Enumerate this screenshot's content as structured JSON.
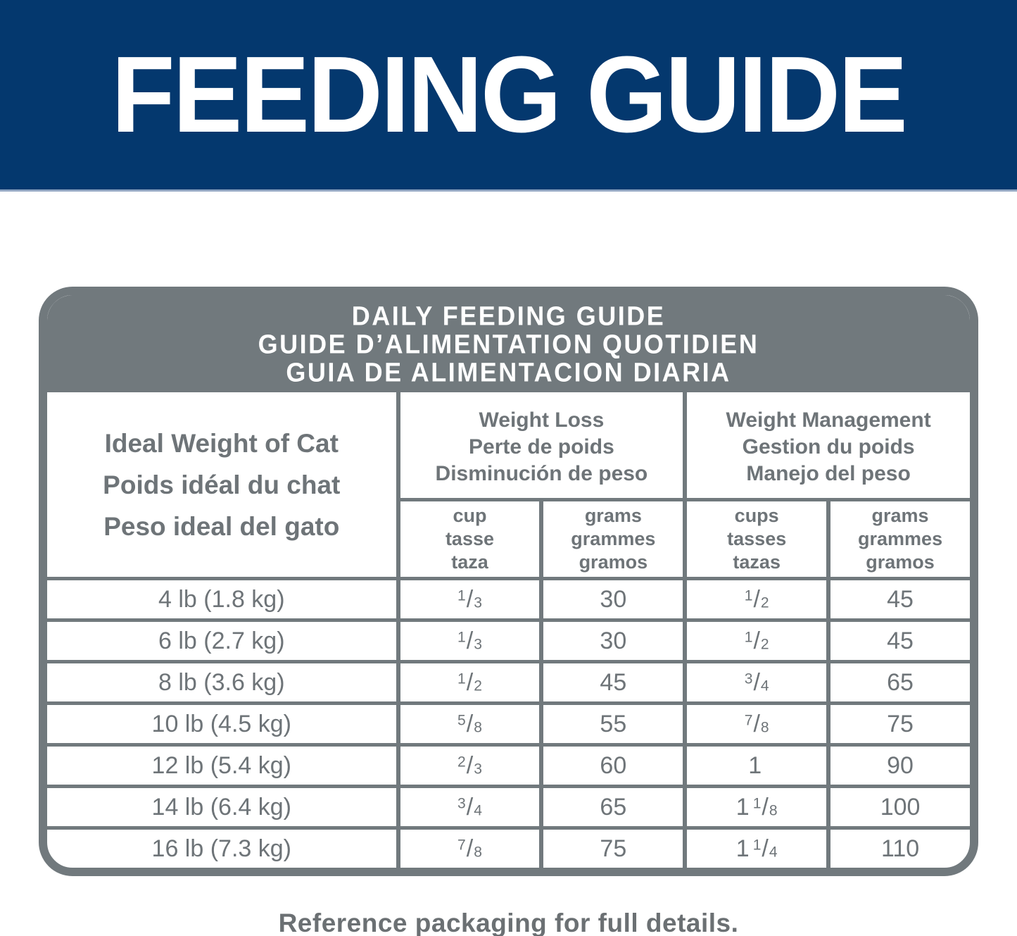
{
  "banner": {
    "title": "FEEDING GUIDE",
    "bg_color": "#04386E",
    "text_color": "#FFFFFF"
  },
  "table": {
    "title_lines": [
      "DAILY FEEDING GUIDE",
      "GUIDE D’ALIMENTATION QUOTIDIEN",
      "GUIA DE ALIMENTACION DIARIA"
    ],
    "row_header_lines": [
      "Ideal Weight of Cat",
      "Poids idéal du chat",
      "Peso ideal del gato"
    ],
    "groups": [
      {
        "title_lines": [
          "Weight Loss",
          "Perte de poids",
          "Disminución de peso"
        ],
        "subcolumns": [
          {
            "lines": [
              "cup",
              "tasse",
              "taza"
            ]
          },
          {
            "lines": [
              "grams",
              "grammes",
              "gramos"
            ]
          }
        ]
      },
      {
        "title_lines": [
          "Weight Management",
          "Gestion du poids",
          "Manejo del peso"
        ],
        "subcolumns": [
          {
            "lines": [
              "cups",
              "tasses",
              "tazas"
            ]
          },
          {
            "lines": [
              "grams",
              "grammes",
              "gramos"
            ]
          }
        ]
      }
    ],
    "rows": [
      {
        "weight": "4 lb (1.8 kg)",
        "loss_cup": "1/3",
        "loss_grams": "30",
        "mgmt_cups": "1/2",
        "mgmt_grams": "45"
      },
      {
        "weight": "6 lb (2.7 kg)",
        "loss_cup": "1/3",
        "loss_grams": "30",
        "mgmt_cups": "1/2",
        "mgmt_grams": "45"
      },
      {
        "weight": "8 lb (3.6 kg)",
        "loss_cup": "1/2",
        "loss_grams": "45",
        "mgmt_cups": "3/4",
        "mgmt_grams": "65"
      },
      {
        "weight": "10 lb (4.5 kg)",
        "loss_cup": "5/8",
        "loss_grams": "55",
        "mgmt_cups": "7/8",
        "mgmt_grams": "75"
      },
      {
        "weight": "12 lb (5.4 kg)",
        "loss_cup": "2/3",
        "loss_grams": "60",
        "mgmt_cups": "1",
        "mgmt_grams": "90"
      },
      {
        "weight": "14 lb (6.4 kg)",
        "loss_cup": "3/4",
        "loss_grams": "65",
        "mgmt_cups": "1 1/8",
        "mgmt_grams": "100"
      },
      {
        "weight": "16 lb (7.3 kg)",
        "loss_cup": "7/8",
        "loss_grams": "75",
        "mgmt_cups": "1 1/4",
        "mgmt_grams": "110"
      }
    ]
  },
  "footer": {
    "note": "Reference packaging for full details."
  },
  "colors": {
    "banner_blue": "#04386E",
    "table_gray": "#71797D",
    "text_gray": "#6E7478",
    "white": "#FFFFFF"
  }
}
